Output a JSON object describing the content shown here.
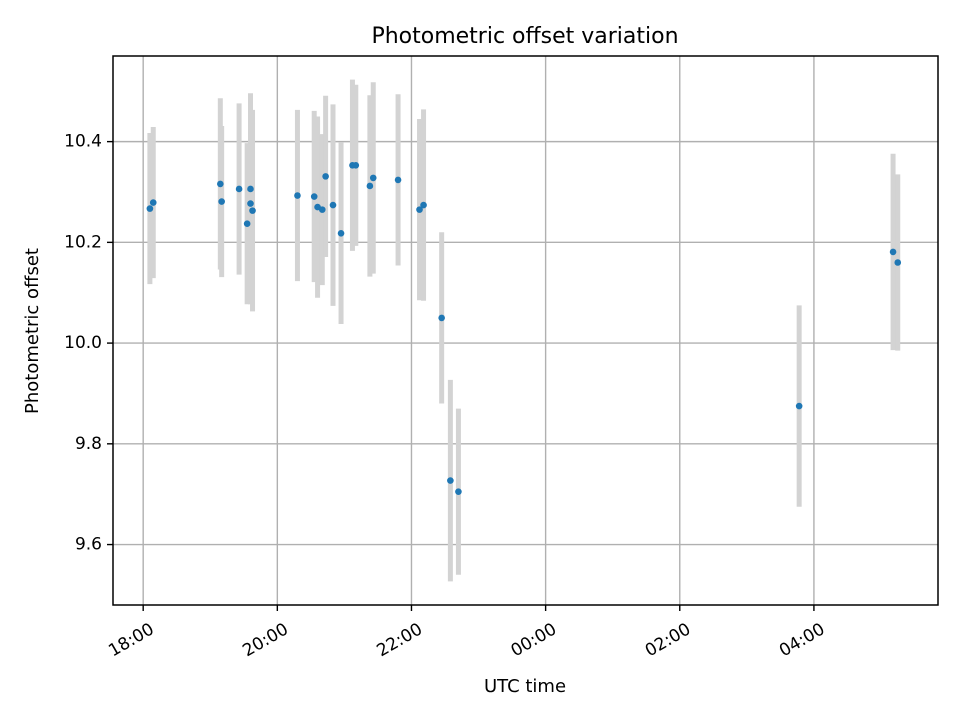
{
  "chart_data": {
    "type": "scatter",
    "title": "Photometric offset variation",
    "xlabel": "UTC time",
    "ylabel": "Photometric offset",
    "grid": true,
    "xlim_hours": [
      17.55,
      29.85
    ],
    "ylim": [
      9.48,
      10.57
    ],
    "x_ticks": [
      {
        "hour": 18,
        "label": "18:00"
      },
      {
        "hour": 20,
        "label": "20:00"
      },
      {
        "hour": 22,
        "label": "22:00"
      },
      {
        "hour": 24,
        "label": "00:00"
      },
      {
        "hour": 26,
        "label": "02:00"
      },
      {
        "hour": 28,
        "label": "04:00"
      }
    ],
    "y_ticks": [
      {
        "value": 9.6,
        "label": "9.6"
      },
      {
        "value": 9.8,
        "label": "9.8"
      },
      {
        "value": 10.0,
        "label": "10.0"
      },
      {
        "value": 10.2,
        "label": "10.2"
      },
      {
        "value": 10.4,
        "label": "10.4"
      }
    ],
    "colors": {
      "point": "#1f77b4",
      "errorbar": "#d3d3d3"
    },
    "points": [
      {
        "hour": 18.1,
        "value": 10.267,
        "err": 0.15
      },
      {
        "hour": 18.15,
        "value": 10.279,
        "err": 0.15
      },
      {
        "hour": 19.15,
        "value": 10.316,
        "err": 0.17
      },
      {
        "hour": 19.17,
        "value": 10.281,
        "err": 0.15
      },
      {
        "hour": 19.43,
        "value": 10.306,
        "err": 0.17
      },
      {
        "hour": 19.55,
        "value": 10.237,
        "err": 0.16
      },
      {
        "hour": 19.6,
        "value": 10.306,
        "err": 0.19
      },
      {
        "hour": 19.6,
        "value": 10.277,
        "err": 0.2
      },
      {
        "hour": 19.63,
        "value": 10.263,
        "err": 0.2
      },
      {
        "hour": 20.3,
        "value": 10.293,
        "err": 0.17
      },
      {
        "hour": 20.55,
        "value": 10.291,
        "err": 0.17
      },
      {
        "hour": 20.6,
        "value": 10.27,
        "err": 0.18
      },
      {
        "hour": 20.67,
        "value": 10.265,
        "err": 0.15
      },
      {
        "hour": 20.72,
        "value": 10.331,
        "err": 0.16
      },
      {
        "hour": 20.83,
        "value": 10.274,
        "err": 0.2
      },
      {
        "hour": 20.95,
        "value": 10.218,
        "err": 0.18
      },
      {
        "hour": 21.12,
        "value": 10.353,
        "err": 0.17
      },
      {
        "hour": 21.17,
        "value": 10.353,
        "err": 0.16
      },
      {
        "hour": 21.38,
        "value": 10.312,
        "err": 0.18
      },
      {
        "hour": 21.43,
        "value": 10.328,
        "err": 0.19
      },
      {
        "hour": 21.8,
        "value": 10.324,
        "err": 0.17
      },
      {
        "hour": 22.12,
        "value": 10.265,
        "err": 0.18
      },
      {
        "hour": 22.18,
        "value": 10.274,
        "err": 0.19
      },
      {
        "hour": 22.45,
        "value": 10.05,
        "err": 0.17
      },
      {
        "hour": 22.58,
        "value": 9.727,
        "err": 0.2
      },
      {
        "hour": 22.7,
        "value": 9.705,
        "err": 0.165
      },
      {
        "hour": 27.78,
        "value": 9.875,
        "err": 0.2
      },
      {
        "hour": 29.18,
        "value": 10.181,
        "err": 0.195
      },
      {
        "hour": 29.25,
        "value": 10.16,
        "err": 0.175
      }
    ]
  }
}
